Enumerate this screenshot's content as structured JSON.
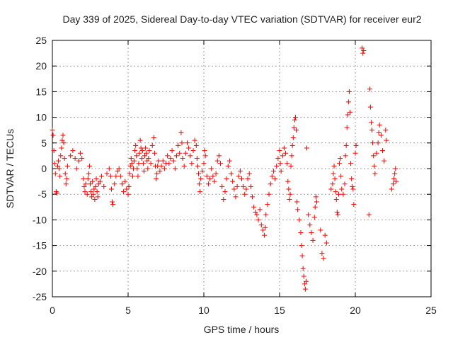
{
  "chart_data": {
    "type": "scatter",
    "title": "Day 339 of 2025, Sidereal Day-to-day VTEC variation (SDTVAR) for receiver eur2",
    "xlabel": "GPS time / hours",
    "ylabel": "SDTVAR / TECUs",
    "xlim": [
      0,
      25
    ],
    "ylim": [
      -25,
      25
    ],
    "x_ticks": [
      0,
      5,
      10,
      15,
      20,
      25
    ],
    "y_ticks": [
      25,
      20,
      15,
      10,
      5,
      0,
      -5,
      -10,
      -15,
      -20,
      -25
    ],
    "grid": true,
    "marker": "plus",
    "colors": {
      "points": "#ff0000",
      "grid": "#a0a0a0",
      "frame": "#000000"
    },
    "series": [
      {
        "name": "SDTVAR",
        "points": [
          [
            0.0,
            7.5
          ],
          [
            0.05,
            6.5
          ],
          [
            0.1,
            3.5
          ],
          [
            0.15,
            1.0
          ],
          [
            0.2,
            -1.0
          ],
          [
            0.25,
            -4.5
          ],
          [
            0.3,
            -4.8
          ],
          [
            0.35,
            0.5
          ],
          [
            0.4,
            1.5
          ],
          [
            0.45,
            0.0
          ],
          [
            0.5,
            -1.5
          ],
          [
            0.55,
            2.5
          ],
          [
            0.6,
            4.0
          ],
          [
            0.65,
            5.5
          ],
          [
            0.7,
            6.5
          ],
          [
            0.75,
            5.0
          ],
          [
            0.8,
            2.0
          ],
          [
            0.85,
            -1.0
          ],
          [
            0.9,
            -3.0
          ],
          [
            0.95,
            -2.0
          ],
          [
            1.0,
            0.5
          ],
          [
            1.2,
            2.5
          ],
          [
            1.35,
            3.5
          ],
          [
            1.5,
            2.0
          ],
          [
            1.6,
            0.0
          ],
          [
            1.75,
            1.5
          ],
          [
            1.85,
            3.0
          ],
          [
            1.95,
            2.0
          ],
          [
            2.05,
            -2.0
          ],
          [
            2.1,
            -3.5
          ],
          [
            2.15,
            -4.5
          ],
          [
            2.2,
            -3.0
          ],
          [
            2.3,
            -5.0
          ],
          [
            2.35,
            -2.0
          ],
          [
            2.4,
            -1.0
          ],
          [
            2.45,
            0.5
          ],
          [
            2.5,
            -3.0
          ],
          [
            2.55,
            -4.5
          ],
          [
            2.6,
            -5.5
          ],
          [
            2.65,
            -2.5
          ],
          [
            2.7,
            -5.0
          ],
          [
            2.75,
            -4.0
          ],
          [
            2.8,
            -6.0
          ],
          [
            2.85,
            -3.5
          ],
          [
            2.9,
            -2.0
          ],
          [
            2.95,
            -4.5
          ],
          [
            3.0,
            -5.5
          ],
          [
            3.05,
            -3.0
          ],
          [
            3.15,
            -2.5
          ],
          [
            3.25,
            -1.5
          ],
          [
            3.4,
            -3.5
          ],
          [
            3.6,
            -1.0
          ],
          [
            3.75,
            0.0
          ],
          [
            3.85,
            -1.5
          ],
          [
            3.9,
            -4.0
          ],
          [
            3.95,
            -6.5
          ],
          [
            4.0,
            -7.0
          ],
          [
            4.1,
            -3.0
          ],
          [
            4.2,
            -1.5
          ],
          [
            4.3,
            -0.5
          ],
          [
            4.4,
            0.0
          ],
          [
            4.5,
            -1.5
          ],
          [
            4.6,
            -3.0
          ],
          [
            4.7,
            -4.5
          ],
          [
            4.8,
            -2.5
          ],
          [
            4.9,
            -4.0
          ],
          [
            5.0,
            -5.0
          ],
          [
            5.05,
            -3.5
          ],
          [
            5.1,
            -1.0
          ],
          [
            5.15,
            0.5
          ],
          [
            5.2,
            2.0
          ],
          [
            5.25,
            1.0
          ],
          [
            5.3,
            -1.5
          ],
          [
            5.35,
            0.0
          ],
          [
            5.4,
            1.5
          ],
          [
            5.45,
            3.5
          ],
          [
            5.5,
            4.5
          ],
          [
            5.55,
            2.5
          ],
          [
            5.6,
            0.0
          ],
          [
            5.65,
            -1.5
          ],
          [
            5.7,
            1.0
          ],
          [
            5.75,
            3.0
          ],
          [
            5.8,
            5.5
          ],
          [
            5.85,
            4.0
          ],
          [
            5.9,
            2.0
          ],
          [
            5.95,
            3.5
          ],
          [
            6.0,
            1.0
          ],
          [
            6.05,
            -0.5
          ],
          [
            6.1,
            2.5
          ],
          [
            6.15,
            4.0
          ],
          [
            6.2,
            3.0
          ],
          [
            6.25,
            1.5
          ],
          [
            6.3,
            0.0
          ],
          [
            6.35,
            2.0
          ],
          [
            6.4,
            3.5
          ],
          [
            6.5,
            1.0
          ],
          [
            6.6,
            4.5
          ],
          [
            6.7,
            6.0
          ],
          [
            6.75,
            3.0
          ],
          [
            6.8,
            0.5
          ],
          [
            6.85,
            -2.0
          ],
          [
            6.9,
            -1.0
          ],
          [
            6.95,
            0.5
          ],
          [
            7.0,
            1.5
          ],
          [
            7.1,
            -0.5
          ],
          [
            7.2,
            0.5
          ],
          [
            7.3,
            1.5
          ],
          [
            7.4,
            0.0
          ],
          [
            7.5,
            1.0
          ],
          [
            7.6,
            2.5
          ],
          [
            7.7,
            1.0
          ],
          [
            7.8,
            2.0
          ],
          [
            7.9,
            3.5
          ],
          [
            8.0,
            1.5
          ],
          [
            8.1,
            0.0
          ],
          [
            8.2,
            2.5
          ],
          [
            8.3,
            4.5
          ],
          [
            8.4,
            3.0
          ],
          [
            8.5,
            7.0
          ],
          [
            8.55,
            5.0
          ],
          [
            8.6,
            2.0
          ],
          [
            8.7,
            0.5
          ],
          [
            8.8,
            3.0
          ],
          [
            8.9,
            5.0
          ],
          [
            9.0,
            4.0
          ],
          [
            9.1,
            2.5
          ],
          [
            9.2,
            1.0
          ],
          [
            9.3,
            3.5
          ],
          [
            9.4,
            5.5
          ],
          [
            9.5,
            4.5
          ],
          [
            9.55,
            2.0
          ],
          [
            9.6,
            0.5
          ],
          [
            9.65,
            -1.0
          ],
          [
            9.7,
            -3.0
          ],
          [
            9.75,
            -4.5
          ],
          [
            9.8,
            -2.0
          ],
          [
            9.9,
            -0.5
          ],
          [
            10.0,
            1.0
          ],
          [
            10.05,
            3.5
          ],
          [
            10.1,
            2.5
          ],
          [
            10.2,
            -1.5
          ],
          [
            10.3,
            -3.0
          ],
          [
            10.4,
            -2.0
          ],
          [
            10.5,
            0.0
          ],
          [
            10.6,
            -1.5
          ],
          [
            10.7,
            -2.5
          ],
          [
            10.8,
            -1.0
          ],
          [
            10.9,
            1.5
          ],
          [
            11.0,
            2.5
          ],
          [
            11.1,
            1.0
          ],
          [
            11.2,
            -3.5
          ],
          [
            11.3,
            -6.0
          ],
          [
            11.4,
            -4.5
          ],
          [
            11.5,
            -2.0
          ],
          [
            11.6,
            0.5
          ],
          [
            11.7,
            1.5
          ],
          [
            11.8,
            -1.0
          ],
          [
            11.9,
            -2.5
          ],
          [
            12.0,
            -4.0
          ],
          [
            12.1,
            -5.5
          ],
          [
            12.2,
            -3.5
          ],
          [
            12.3,
            -1.5
          ],
          [
            12.4,
            -0.5
          ],
          [
            12.5,
            -2.0
          ],
          [
            12.6,
            -3.5
          ],
          [
            12.7,
            -5.0
          ],
          [
            12.8,
            -4.0
          ],
          [
            12.9,
            -2.0
          ],
          [
            13.0,
            -1.0
          ],
          [
            13.1,
            -3.5
          ],
          [
            13.2,
            -5.5
          ],
          [
            13.3,
            -7.5
          ],
          [
            13.4,
            -8.5
          ],
          [
            13.5,
            -9.0
          ],
          [
            13.6,
            -10.0
          ],
          [
            13.7,
            -8.0
          ],
          [
            13.8,
            -11.0
          ],
          [
            13.9,
            -12.0
          ],
          [
            14.0,
            -13.0
          ],
          [
            14.05,
            -11.5
          ],
          [
            14.1,
            -9.0
          ],
          [
            14.2,
            -7.0
          ],
          [
            14.3,
            -5.0
          ],
          [
            14.4,
            -3.0
          ],
          [
            14.5,
            -1.5
          ],
          [
            14.6,
            -0.5
          ],
          [
            14.7,
            -2.0
          ],
          [
            14.8,
            0.5
          ],
          [
            14.9,
            2.0
          ],
          [
            15.0,
            3.5
          ],
          [
            15.05,
            1.0
          ],
          [
            15.1,
            -0.5
          ],
          [
            15.2,
            2.5
          ],
          [
            15.3,
            4.0
          ],
          [
            15.4,
            3.0
          ],
          [
            15.5,
            1.0
          ],
          [
            15.55,
            -2.5
          ],
          [
            15.6,
            -4.0
          ],
          [
            15.65,
            -6.0
          ],
          [
            15.7,
            -5.0
          ],
          [
            15.75,
            0.5
          ],
          [
            15.8,
            2.5
          ],
          [
            15.85,
            4.5
          ],
          [
            15.9,
            6.0
          ],
          [
            15.95,
            8.0
          ],
          [
            16.0,
            9.5
          ],
          [
            16.05,
            10.0
          ],
          [
            16.1,
            7.5
          ],
          [
            16.15,
            -6.5
          ],
          [
            16.2,
            -8.0
          ],
          [
            16.3,
            -10.0
          ],
          [
            16.4,
            -12.5
          ],
          [
            16.45,
            -15.0
          ],
          [
            16.5,
            -17.0
          ],
          [
            16.55,
            -19.5
          ],
          [
            16.6,
            -21.0
          ],
          [
            16.65,
            -22.5
          ],
          [
            16.7,
            -23.5
          ],
          [
            16.75,
            -22.0
          ],
          [
            16.8,
            4.0
          ],
          [
            16.9,
            -9.0
          ],
          [
            17.0,
            -11.0
          ],
          [
            17.1,
            -12.5
          ],
          [
            17.2,
            -14.0
          ],
          [
            17.3,
            -9.5
          ],
          [
            17.35,
            -7.5
          ],
          [
            17.4,
            -5.5
          ],
          [
            17.45,
            -6.5
          ],
          [
            17.7,
            -12.0
          ],
          [
            17.8,
            -16.5
          ],
          [
            17.9,
            -17.5
          ],
          [
            18.0,
            -13.0
          ],
          [
            18.1,
            -14.5
          ],
          [
            18.4,
            -4.0
          ],
          [
            18.5,
            -3.0
          ],
          [
            18.55,
            -1.0
          ],
          [
            18.6,
            0.5
          ],
          [
            18.65,
            -2.0
          ],
          [
            18.7,
            -4.5
          ],
          [
            18.75,
            -6.0
          ],
          [
            18.8,
            -8.5
          ],
          [
            18.85,
            -9.0
          ],
          [
            18.9,
            -5.0
          ],
          [
            18.95,
            1.0
          ],
          [
            19.0,
            2.0
          ],
          [
            19.05,
            -1.5
          ],
          [
            19.1,
            -4.0
          ],
          [
            19.2,
            -5.0
          ],
          [
            19.3,
            -3.0
          ],
          [
            19.35,
            2.5
          ],
          [
            19.4,
            4.5
          ],
          [
            19.45,
            8.0
          ],
          [
            19.5,
            10.5
          ],
          [
            19.55,
            13.0
          ],
          [
            19.6,
            15.0
          ],
          [
            19.65,
            11.0
          ],
          [
            19.7,
            1.0
          ],
          [
            19.75,
            -2.0
          ],
          [
            19.8,
            -3.5
          ],
          [
            19.85,
            -4.0
          ],
          [
            19.9,
            -7.0
          ],
          [
            20.0,
            3.0
          ],
          [
            20.05,
            4.5
          ],
          [
            20.45,
            23.5
          ],
          [
            20.5,
            22.5
          ],
          [
            20.55,
            23.0
          ],
          [
            20.9,
            -9.0
          ],
          [
            20.95,
            15.5
          ],
          [
            21.0,
            12.0
          ],
          [
            21.05,
            9.0
          ],
          [
            21.1,
            7.5
          ],
          [
            21.15,
            5.0
          ],
          [
            21.2,
            2.5
          ],
          [
            21.25,
            0.5
          ],
          [
            21.3,
            -1.0
          ],
          [
            21.4,
            3.0
          ],
          [
            21.5,
            5.0
          ],
          [
            21.55,
            7.0
          ],
          [
            21.6,
            8.5
          ],
          [
            21.7,
            6.5
          ],
          [
            21.8,
            3.5
          ],
          [
            21.9,
            1.5
          ],
          [
            22.0,
            7.5
          ],
          [
            22.05,
            5.5
          ],
          [
            22.4,
            -4.0
          ],
          [
            22.5,
            -3.0
          ],
          [
            22.55,
            -2.0
          ],
          [
            22.6,
            -1.0
          ],
          [
            22.65,
            0.0
          ],
          [
            22.7,
            -2.5
          ]
        ]
      }
    ]
  }
}
